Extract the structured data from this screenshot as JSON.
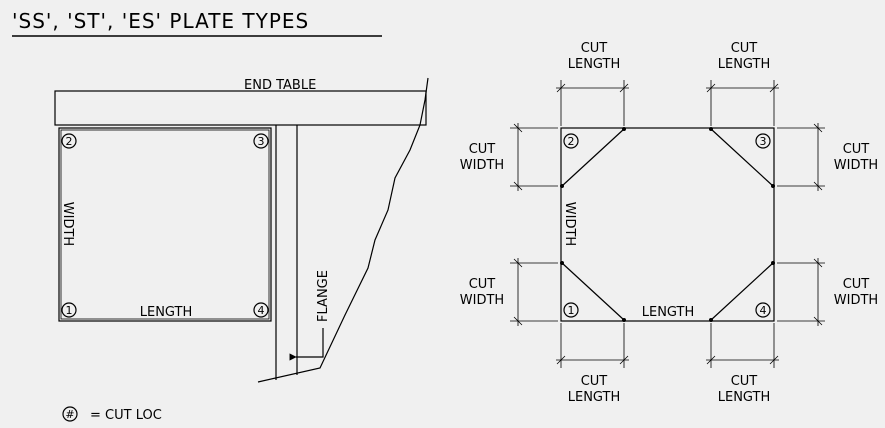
{
  "title": "'SS', 'ST', 'ES' PLATE TYPES",
  "left_view": {
    "end_table": "END TABLE",
    "width": "WIDTH",
    "length": "LENGTH",
    "flange": "FLANGE",
    "corners": [
      "1",
      "2",
      "3",
      "4"
    ]
  },
  "right_view": {
    "cut_length_top_left": [
      "CUT",
      "LENGTH"
    ],
    "cut_length_top_right": [
      "CUT",
      "LENGTH"
    ],
    "cut_length_bottom_left": [
      "CUT",
      "LENGTH"
    ],
    "cut_length_bottom_right": [
      "CUT",
      "LENGTH"
    ],
    "cut_width_upper_left": [
      "CUT",
      "WIDTH"
    ],
    "cut_width_upper_right": [
      "CUT",
      "WIDTH"
    ],
    "cut_width_lower_left": [
      "CUT",
      "WIDTH"
    ],
    "cut_width_lower_right": [
      "CUT",
      "WIDTH"
    ],
    "width": "WIDTH",
    "length": "LENGTH",
    "corners": [
      "1",
      "2",
      "3",
      "4"
    ]
  },
  "legend": {
    "symbol": "#",
    "text": "= CUT LOC"
  }
}
